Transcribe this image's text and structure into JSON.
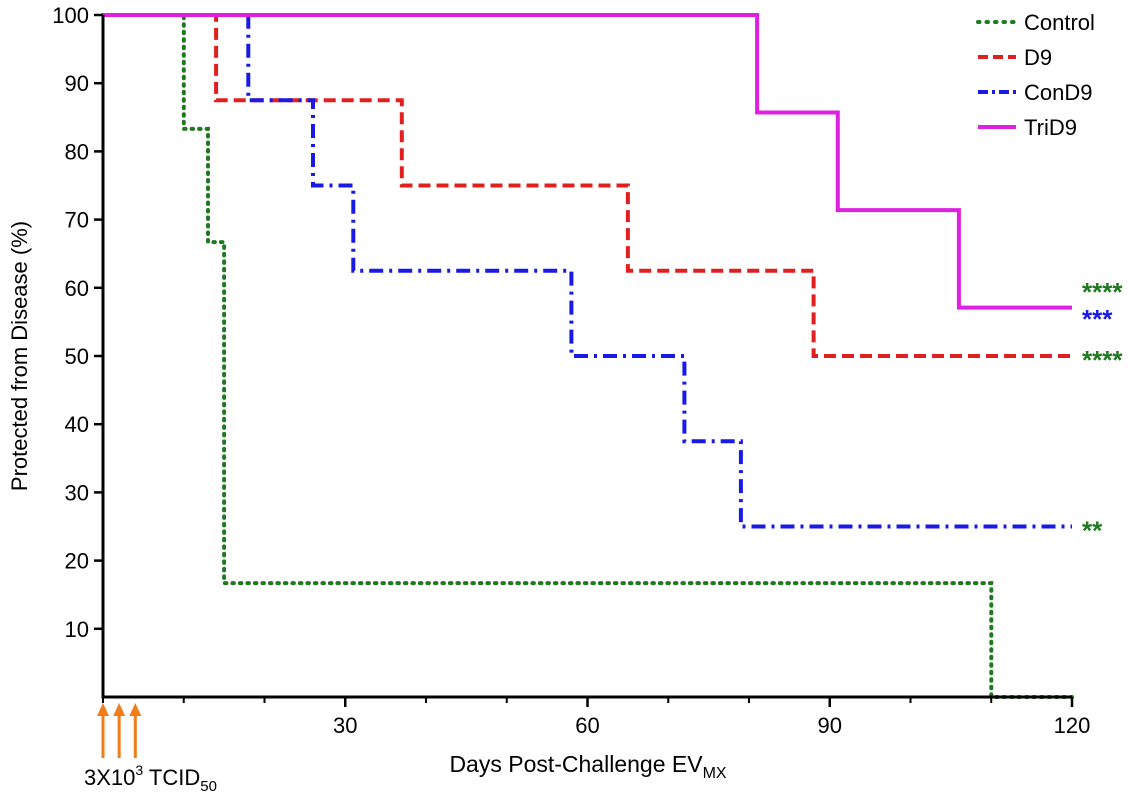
{
  "chart_data": {
    "type": "line",
    "step": true,
    "xlabel": "Days Post-Challenge EV",
    "xlabel_sub": "MX",
    "ylabel": "Protected from Disease (%)",
    "xlim": [
      0,
      120
    ],
    "ylim": [
      0,
      100
    ],
    "x_ticks": [
      30,
      60,
      90,
      120
    ],
    "x_minor_ticks": [
      0,
      10,
      20,
      40,
      50,
      70,
      80,
      100,
      110
    ],
    "y_ticks": [
      10,
      20,
      30,
      40,
      50,
      60,
      70,
      80,
      90,
      100
    ],
    "grid": false,
    "legend_position": "top-right",
    "series": [
      {
        "name": "Control",
        "color": "#1f7a1f",
        "style": "dotted",
        "points": [
          [
            0,
            100
          ],
          [
            10,
            100
          ],
          [
            10,
            83.3
          ],
          [
            13,
            83.3
          ],
          [
            13,
            66.7
          ],
          [
            15,
            66.7
          ],
          [
            15,
            16.7
          ],
          [
            110,
            16.7
          ],
          [
            110,
            0
          ],
          [
            120,
            0
          ]
        ]
      },
      {
        "name": "D9",
        "color": "#e0201f",
        "style": "dashed",
        "points": [
          [
            0,
            100
          ],
          [
            14,
            100
          ],
          [
            14,
            87.5
          ],
          [
            37,
            87.5
          ],
          [
            37,
            75
          ],
          [
            65,
            75
          ],
          [
            65,
            62.5
          ],
          [
            88,
            62.5
          ],
          [
            88,
            50
          ],
          [
            120,
            50
          ]
        ]
      },
      {
        "name": "ConD9",
        "color": "#1a1ae6",
        "style": "dash-dot",
        "points": [
          [
            0,
            100
          ],
          [
            18,
            100
          ],
          [
            18,
            87.5
          ],
          [
            26,
            87.5
          ],
          [
            26,
            75
          ],
          [
            31,
            75
          ],
          [
            31,
            62.5
          ],
          [
            58,
            62.5
          ],
          [
            58,
            50
          ],
          [
            72,
            50
          ],
          [
            72,
            37.5
          ],
          [
            79,
            37.5
          ],
          [
            79,
            25
          ],
          [
            120,
            25
          ]
        ]
      },
      {
        "name": "TriD9",
        "color": "#e020e0",
        "style": "solid",
        "points": [
          [
            0,
            100
          ],
          [
            81,
            100
          ],
          [
            81,
            85.7
          ],
          [
            91,
            85.7
          ],
          [
            91,
            71.4
          ],
          [
            106,
            71.4
          ],
          [
            106,
            57.1
          ],
          [
            120,
            57.1
          ]
        ]
      }
    ],
    "annotations": [
      {
        "text": "****",
        "y": 60,
        "color": "#1f7a1f"
      },
      {
        "text": "***",
        "y": 56,
        "color": "#1a1ae6"
      },
      {
        "text": "****",
        "y": 50,
        "color": "#1f7a1f"
      },
      {
        "text": "**",
        "y": 25,
        "color": "#1f7a1f"
      }
    ],
    "dose_arrows": {
      "days": [
        0,
        2,
        4
      ],
      "color": "#f07c1a",
      "label": "3X10",
      "label_sup": "3",
      "label_mid": " TCID",
      "label_sub": "50"
    }
  }
}
